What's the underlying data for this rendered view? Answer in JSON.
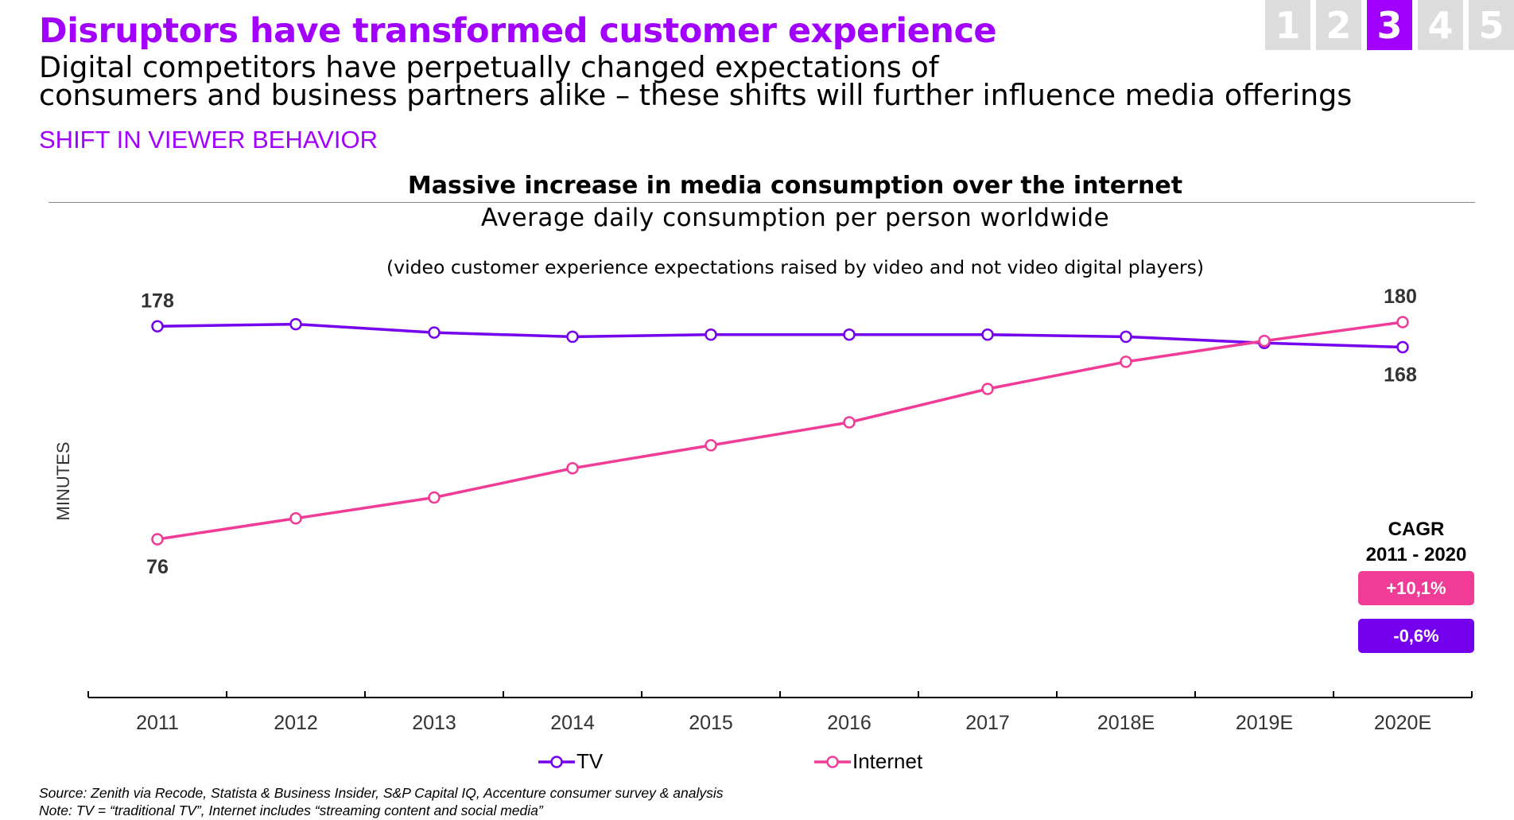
{
  "header": {
    "headline": "Disruptors have transformed customer experience",
    "subhead_line1": "Digital competitors have perpetually changed expectations of",
    "subhead_line2": "consumers and business partners alike – these shifts will further influence media offerings",
    "section": "SHIFT IN VIEWER BEHAVIOR"
  },
  "pager": {
    "pages": [
      "1",
      "2",
      "3",
      "4",
      "5"
    ],
    "active_index": 2
  },
  "colors": {
    "accent": "#a100ff",
    "tv": "#7500ee",
    "internet": "#f03c96",
    "pager_inactive": "#dcdcdc",
    "text": "#000000",
    "axis_label": "#333333"
  },
  "chart_data": {
    "type": "line",
    "title": "Massive increase in media consumption over the internet",
    "subtitle": "Average daily consumption per person worldwide",
    "note": "(video customer experience expectations raised by video and not video digital players)",
    "xlabel": "",
    "ylabel": "MINUTES",
    "categories": [
      "2011",
      "2012",
      "2013",
      "2014",
      "2015",
      "2016",
      "2017",
      "2018E",
      "2019E",
      "2020E"
    ],
    "series": [
      {
        "name": "TV",
        "color": "#7500ee",
        "values": [
          178,
          179,
          175,
          173,
          174,
          174,
          174,
          173,
          170,
          168
        ]
      },
      {
        "name": "Internet",
        "color": "#f03c96",
        "values": [
          76,
          86,
          96,
          110,
          121,
          132,
          148,
          161,
          171,
          180
        ]
      }
    ],
    "ylim": [
      0,
      190
    ],
    "grid": false,
    "legend_position": "bottom",
    "data_labels": [
      {
        "series": "TV",
        "category": "2011",
        "text": "178",
        "position": "above"
      },
      {
        "series": "Internet",
        "category": "2011",
        "text": "76",
        "position": "below"
      },
      {
        "series": "Internet",
        "category": "2020E",
        "text": "180",
        "position": "above"
      },
      {
        "series": "TV",
        "category": "2020E",
        "text": "168",
        "position": "below"
      }
    ],
    "cagr": {
      "title_line1": "CAGR",
      "title_line2": "2011 - 2020",
      "internet": "+10,1%",
      "tv": "-0,6%"
    }
  },
  "footer": {
    "source": "Source: Zenith via Recode, Statista & Business Insider, S&P Capital IQ, Accenture consumer survey & analysis",
    "note": "Note: TV = “traditional TV”, Internet includes “streaming content and social media”"
  }
}
